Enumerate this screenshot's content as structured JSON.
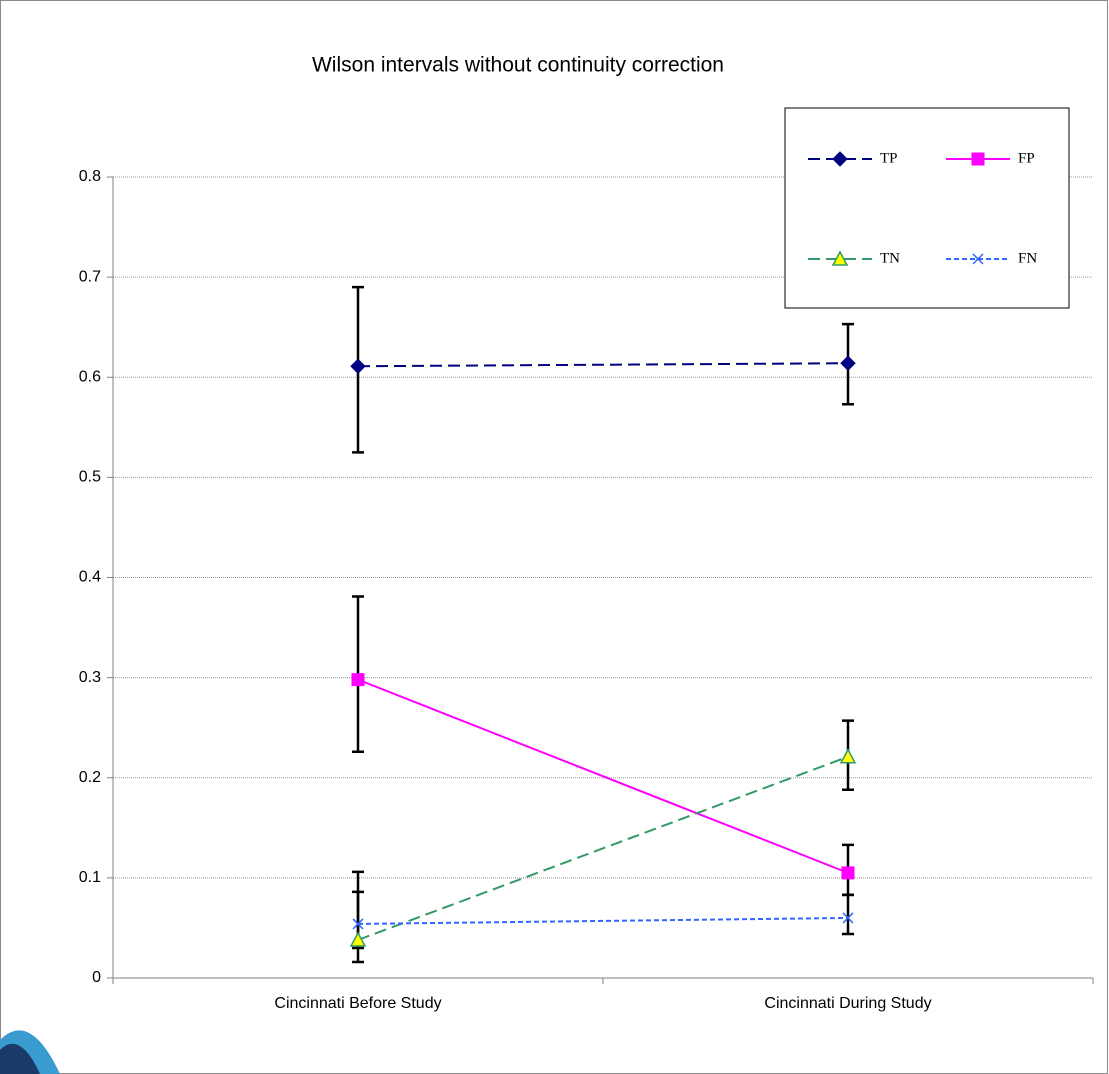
{
  "chart_data": {
    "type": "line",
    "title": "Wilson intervals without continuity correction",
    "categories": [
      "Cincinnati Before Study",
      "Cincinnati During Study"
    ],
    "series": [
      {
        "name": "TP",
        "color": "#000080",
        "line_style": "dashed",
        "marker": "diamond",
        "marker_fill": "#000080",
        "values": [
          0.611,
          0.614
        ],
        "error_low": [
          0.525,
          0.573
        ],
        "error_high": [
          0.69,
          0.653
        ]
      },
      {
        "name": "FP",
        "color": "#ff00ff",
        "line_style": "solid",
        "marker": "square",
        "marker_fill": "#ff00ff",
        "values": [
          0.298,
          0.105
        ],
        "error_low": [
          0.226,
          0.083
        ],
        "error_high": [
          0.381,
          0.133
        ]
      },
      {
        "name": "TN",
        "color": "#339966",
        "line_style": "dashed",
        "marker": "triangle",
        "marker_fill": "#ffff00",
        "values": [
          0.038,
          0.221
        ],
        "error_low": [
          0.016,
          0.188
        ],
        "error_high": [
          0.086,
          0.257
        ]
      },
      {
        "name": "FN",
        "color": "#3366ff",
        "line_style": "dotted",
        "marker": "x",
        "marker_fill": "#3366ff",
        "values": [
          0.054,
          0.06
        ],
        "error_low": [
          0.03,
          0.044
        ],
        "error_high": [
          0.106,
          0.083
        ]
      }
    ],
    "ylim": [
      0,
      0.8
    ],
    "yticks": [
      0,
      0.1,
      0.2,
      0.3,
      0.4,
      0.5,
      0.6,
      0.7,
      0.8
    ],
    "grid": true,
    "legend": "upper right"
  }
}
